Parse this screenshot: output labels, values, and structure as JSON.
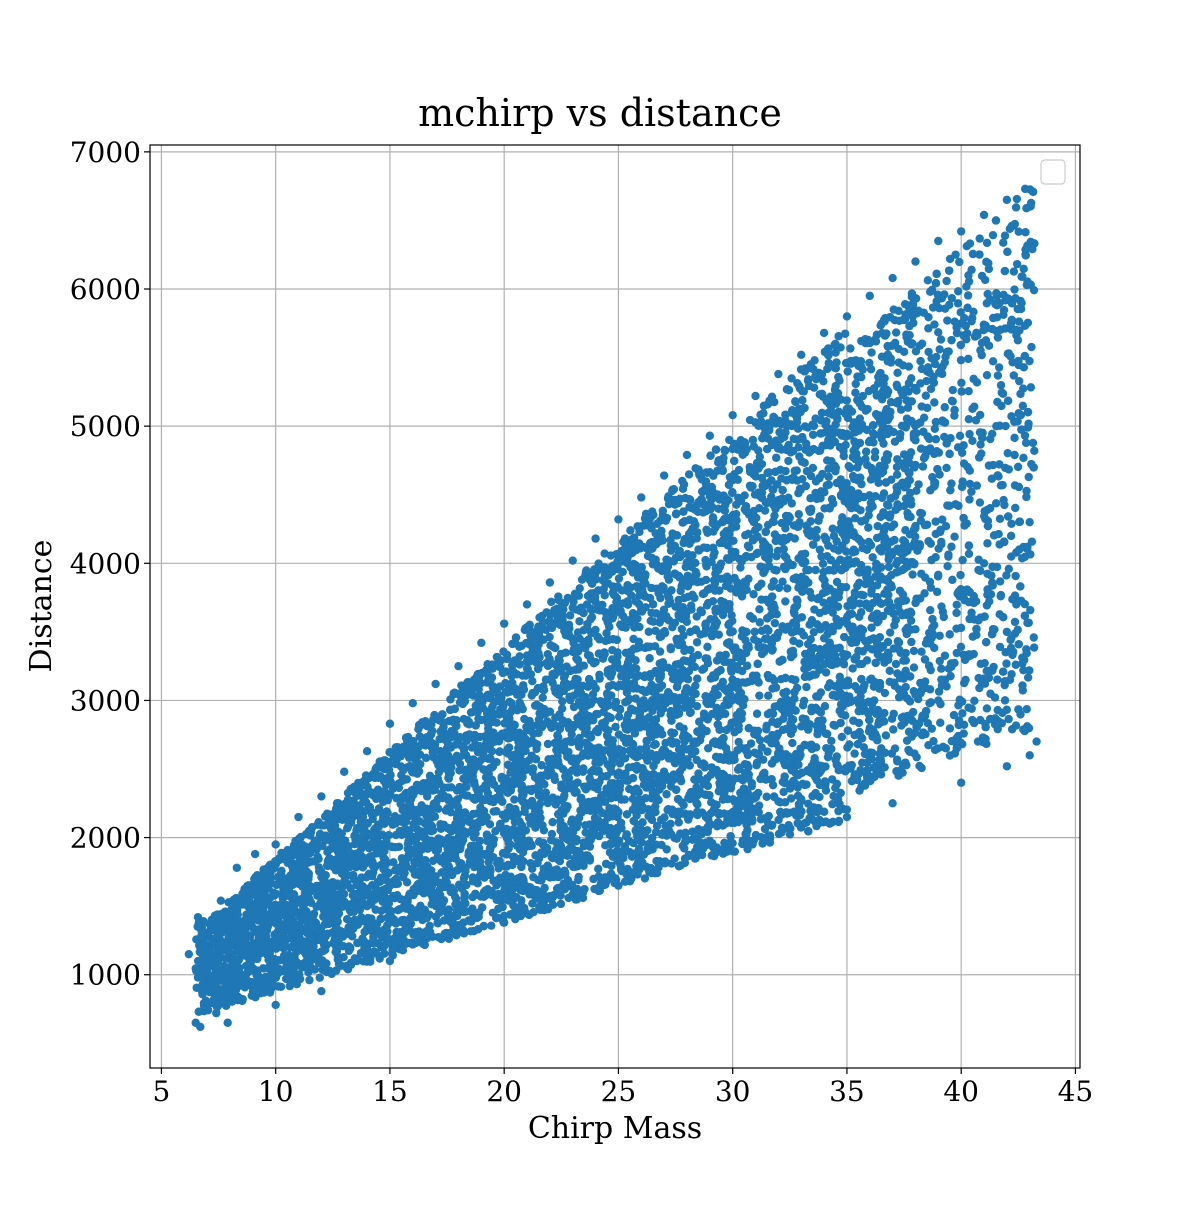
{
  "chart_data": {
    "type": "scatter",
    "title": "mchirp vs distance",
    "xlabel": "Chirp Mass",
    "ylabel": "Distance",
    "xlim": [
      4.5,
      45.2
    ],
    "ylim": [
      320,
      7050
    ],
    "xticks": [
      5,
      10,
      15,
      20,
      25,
      30,
      35,
      40,
      45
    ],
    "yticks": [
      1000,
      2000,
      3000,
      4000,
      5000,
      6000,
      7000
    ],
    "grid": true,
    "legend": "top-right, empty",
    "marker_color": "#1f77b4",
    "series": [
      {
        "points_sample": [
          [
            6.2,
            1150
          ],
          [
            6.5,
            650
          ],
          [
            6.7,
            620
          ],
          [
            6.6,
            980
          ],
          [
            6.8,
            1260
          ],
          [
            6.6,
            1420
          ],
          [
            7.2,
            1400
          ],
          [
            7.6,
            1540
          ],
          [
            7.4,
            720
          ],
          [
            7.0,
            780
          ],
          [
            7.9,
            650
          ],
          [
            8.3,
            1780
          ],
          [
            9.1,
            1880
          ],
          [
            10.0,
            1950
          ],
          [
            11.0,
            2150
          ],
          [
            12.0,
            2300
          ],
          [
            13.0,
            2480
          ],
          [
            14.0,
            2630
          ],
          [
            15.0,
            2830
          ],
          [
            16.0,
            2980
          ],
          [
            17.0,
            3120
          ],
          [
            18.0,
            3250
          ],
          [
            19.0,
            3420
          ],
          [
            20.0,
            3560
          ],
          [
            21.0,
            3700
          ],
          [
            22.0,
            3860
          ],
          [
            23.0,
            4020
          ],
          [
            24.0,
            4180
          ],
          [
            25.0,
            4320
          ],
          [
            26.0,
            4480
          ],
          [
            27.0,
            4640
          ],
          [
            28.0,
            4790
          ],
          [
            29.0,
            4930
          ],
          [
            30.0,
            5080
          ],
          [
            31.0,
            5220
          ],
          [
            32.0,
            5380
          ],
          [
            33.0,
            5520
          ],
          [
            34.0,
            5680
          ],
          [
            35.0,
            5800
          ],
          [
            36.0,
            5950
          ],
          [
            37.0,
            6080
          ],
          [
            38.0,
            6200
          ],
          [
            39.0,
            6350
          ],
          [
            40.0,
            6420
          ],
          [
            41.0,
            6540
          ],
          [
            42.0,
            6650
          ],
          [
            42.8,
            6730
          ],
          [
            43.0,
            6600
          ],
          [
            10.0,
            780
          ],
          [
            12.0,
            880
          ],
          [
            15.0,
            1100
          ],
          [
            20.0,
            1380
          ],
          [
            25.0,
            1650
          ],
          [
            30.0,
            1900
          ],
          [
            35.0,
            2150
          ],
          [
            37.0,
            2250
          ],
          [
            40.0,
            2400
          ],
          [
            42.0,
            2520
          ],
          [
            43.0,
            2600
          ],
          [
            43.3,
            2700
          ],
          [
            43.2,
            4820
          ],
          [
            42.9,
            4120
          ],
          [
            42.0,
            3500
          ],
          [
            41.0,
            4000
          ],
          [
            39.0,
            3000
          ],
          [
            36.0,
            2800
          ],
          [
            33.0,
            3500
          ],
          [
            28.0,
            3000
          ],
          [
            22.0,
            2500
          ],
          [
            18.0,
            2000
          ],
          [
            14.0,
            1500
          ],
          [
            11.0,
            1200
          ]
        ],
        "points_total_estimate": 20000
      }
    ]
  }
}
